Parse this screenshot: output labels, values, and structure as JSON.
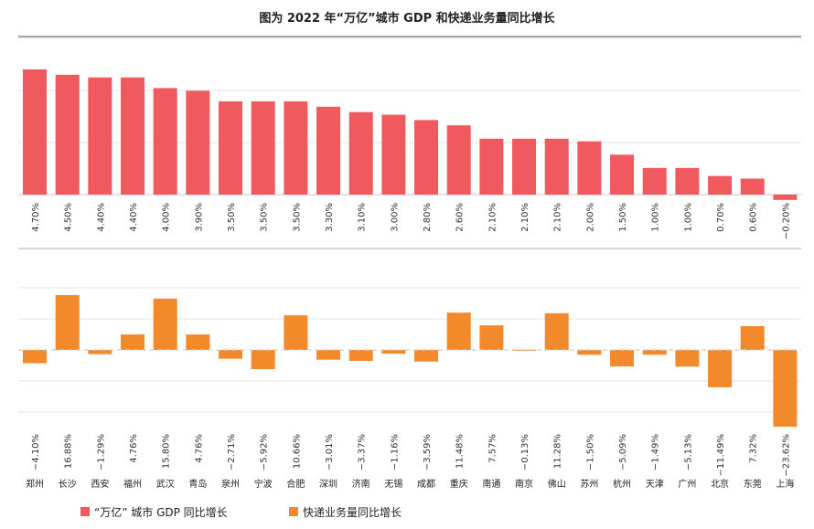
{
  "chart_data": {
    "type": "bar",
    "title": "图为 2022 年“万亿”城市 GDP 和快递业务量同比增长",
    "categories": [
      "郑州",
      "长沙",
      "西安",
      "福州",
      "武汉",
      "青岛",
      "泉州",
      "宁波",
      "合肥",
      "深圳",
      "济南",
      "无锡",
      "成都",
      "重庆",
      "南通",
      "南京",
      "佛山",
      "苏州",
      "杭州",
      "天津",
      "广州",
      "北京",
      "东莞",
      "上海"
    ],
    "series": [
      {
        "name": "“万亿” 城市 GDP 同比增长",
        "color": "#f05a5e",
        "values": [
          4.7,
          4.5,
          4.4,
          4.4,
          4.0,
          3.9,
          3.5,
          3.5,
          3.5,
          3.3,
          3.1,
          3.0,
          2.8,
          2.6,
          2.1,
          2.1,
          2.1,
          2.0,
          1.5,
          1.0,
          1.0,
          0.7,
          0.6,
          -0.2
        ],
        "labels": [
          "4.70%",
          "4.50%",
          "4.40%",
          "4.40%",
          "4.00%",
          "3.90%",
          "3.50%",
          "3.50%",
          "3.50%",
          "3.30%",
          "3.10%",
          "3.00%",
          "2.80%",
          "2.60%",
          "2.10%",
          "2.10%",
          "2.10%",
          "2.00%",
          "1.50%",
          "1.00%",
          "1.00%",
          "0.70%",
          "0.60%",
          "−0.20%"
        ],
        "ylim": [
          -0.2,
          5
        ]
      },
      {
        "name": "快递业务量同比增长",
        "color": "#f28a2c",
        "values": [
          -4.1,
          16.88,
          -1.29,
          4.76,
          15.8,
          4.76,
          -2.71,
          -5.92,
          10.66,
          -3.01,
          -3.37,
          -1.16,
          -3.59,
          11.48,
          7.57,
          -0.13,
          11.28,
          -1.5,
          -5.09,
          -1.49,
          -5.13,
          -11.49,
          7.32,
          -23.62
        ],
        "labels": [
          "−4.10%",
          "16.88%",
          "−1.29%",
          "4.76%",
          "15.80%",
          "4.76%",
          "−2.71%",
          "−5.92%",
          "10.66%",
          "−3.01%",
          "−3.37%",
          "−1.16%",
          "−3.59%",
          "11.48%",
          "7.57%",
          "−0.13%",
          "11.28%",
          "−1.50%",
          "−5.09%",
          "−1.49%",
          "−5.13%",
          "−11.49%",
          "7.32%",
          "−23.62%"
        ],
        "ylim": [
          -24,
          20
        ]
      }
    ],
    "legend_position": "bottom-left",
    "grid": true
  }
}
